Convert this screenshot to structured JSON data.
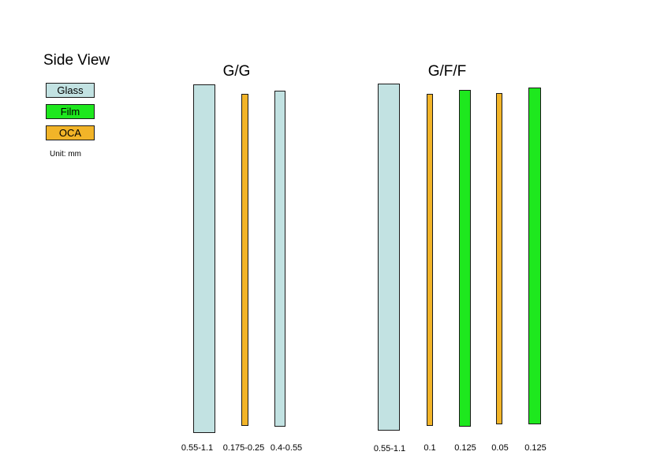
{
  "colors": {
    "glass": "#c2e2e2",
    "film": "#1ee81e",
    "oca": "#f2b428",
    "outline": "#1a1a1a"
  },
  "legend": {
    "title": "Side View",
    "items": [
      {
        "key": "glass",
        "label": "Glass"
      },
      {
        "key": "film",
        "label": "Film"
      },
      {
        "key": "oca",
        "label": "OCA"
      }
    ],
    "unit": "Unit: mm"
  },
  "stacks": [
    {
      "title": "G/G",
      "layers": [
        {
          "material": "glass",
          "thickness": "0.55-1.1"
        },
        {
          "material": "oca",
          "thickness": "0.175-0.25"
        },
        {
          "material": "glass",
          "thickness": "0.4-0.55"
        }
      ]
    },
    {
      "title": "G/F/F",
      "layers": [
        {
          "material": "glass",
          "thickness": "0.55-1.1"
        },
        {
          "material": "oca",
          "thickness": "0.1"
        },
        {
          "material": "film",
          "thickness": "0.125"
        },
        {
          "material": "oca",
          "thickness": "0.05"
        },
        {
          "material": "film",
          "thickness": "0.125"
        }
      ]
    }
  ]
}
